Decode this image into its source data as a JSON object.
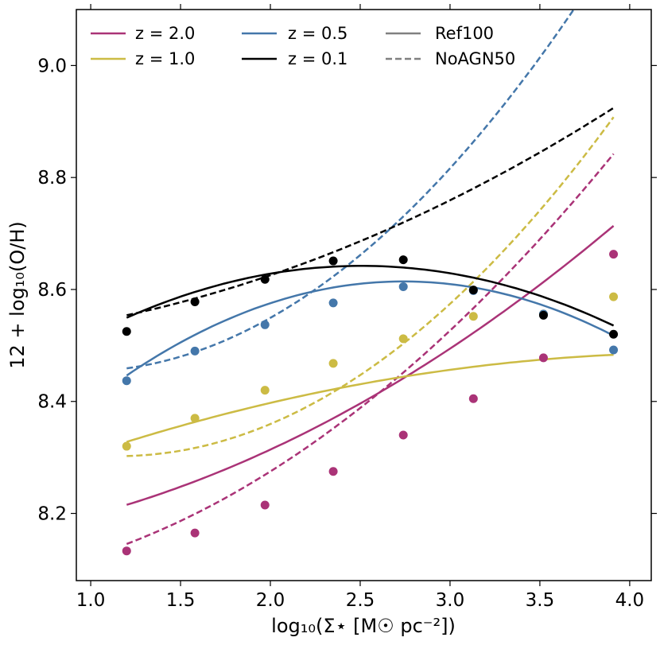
{
  "chart_data": {
    "type": "line",
    "title": "",
    "xlabel": "log₁₀(Σ⋆ [M☉ pc⁻²])",
    "ylabel": "12 + log₁₀(O/H)",
    "xlim": [
      0.92,
      4.12
    ],
    "ylim": [
      8.08,
      9.1
    ],
    "xticks": [
      1.0,
      1.5,
      2.0,
      2.5,
      3.0,
      3.5,
      4.0
    ],
    "xtick_labels": [
      "1.0",
      "1.5",
      "2.0",
      "2.5",
      "3.0",
      "3.5",
      "4.0"
    ],
    "yticks": [
      8.2,
      8.4,
      8.6,
      8.8,
      9.0
    ],
    "ytick_labels": [
      "8.2",
      "8.4",
      "8.6",
      "8.8",
      "9.0"
    ],
    "legend_position": "top-left",
    "legend": [
      {
        "label": "z = 2.0",
        "color": "#AA3377",
        "style": "solid"
      },
      {
        "label": "z = 1.0",
        "color": "#CCBB44",
        "style": "solid"
      },
      {
        "label": "z = 0.5",
        "color": "#4477AA",
        "style": "solid"
      },
      {
        "label": "z = 0.1",
        "color": "#000000",
        "style": "solid"
      },
      {
        "label": "Ref100",
        "color": "#808080",
        "style": "solid"
      },
      {
        "label": "NoAGN50",
        "color": "#808080",
        "style": "dashed"
      }
    ],
    "series": [
      {
        "name": "z = 2.0",
        "color": "#AA3377",
        "points_x": [
          1.2,
          1.58,
          1.97,
          2.35,
          2.74,
          3.13,
          3.52,
          3.91
        ],
        "points_y": [
          8.133,
          8.165,
          8.215,
          8.275,
          8.34,
          8.405,
          8.478,
          8.663
        ],
        "ref100_quadratic": [
          8.1434,
          0.0219,
          0.0317
        ],
        "noagn50_quadratic": [
          8.0706,
          0.0026,
          0.0498
        ]
      },
      {
        "name": "z = 1.0",
        "color": "#CCBB44",
        "points_x": [
          1.2,
          1.58,
          1.97,
          2.35,
          2.74,
          3.13,
          3.52,
          3.91
        ],
        "points_y": [
          8.32,
          8.37,
          8.42,
          8.468,
          8.512,
          8.552,
          8.556,
          8.587
        ],
        "ref100_quadratic": [
          8.1862,
          0.1366,
          -0.0155
        ],
        "noagn50_quadratic": [
          8.4075,
          -0.1829,
          0.0795
        ]
      },
      {
        "name": "z = 0.5",
        "color": "#4477AA",
        "points_x": [
          1.2,
          1.58,
          1.97,
          2.35,
          2.74,
          3.13,
          3.52,
          3.91
        ],
        "points_y": [
          8.437,
          8.49,
          8.537,
          8.576,
          8.605,
          8.598,
          8.556,
          8.492
        ],
        "ref100_quadratic": [
          8.0825,
          0.3881,
          -0.0708
        ],
        "noagn50_quadratic": [
          8.5299,
          -0.1619,
          0.0858
        ]
      },
      {
        "name": "z = 0.1",
        "color": "#000000",
        "points_x": [
          1.2,
          1.58,
          1.97,
          2.35,
          2.74,
          3.13,
          3.52,
          3.91
        ],
        "points_y": [
          8.525,
          8.578,
          8.618,
          8.651,
          8.653,
          8.599,
          8.554,
          8.52
        ],
        "ref100_quadratic": [
          8.3014,
          0.2718,
          -0.0542
        ],
        "noagn50_quadratic": [
          8.5064,
          0.0099,
          0.0248
        ]
      }
    ]
  }
}
